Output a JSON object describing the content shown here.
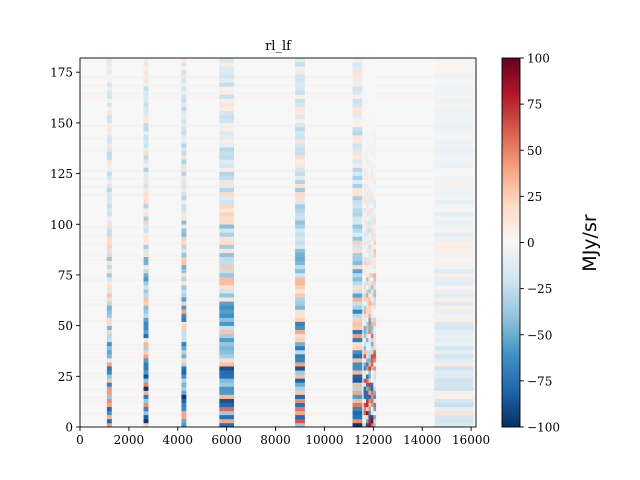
{
  "chart_data": {
    "type": "heatmap",
    "title": "rl_lf",
    "xlabel": "",
    "ylabel": "",
    "xlim": [
      0,
      16200
    ],
    "ylim": [
      0,
      182
    ],
    "xticks": [
      0,
      2000,
      4000,
      6000,
      8000,
      10000,
      12000,
      14000,
      16000
    ],
    "xtick_labels": [
      "0",
      "2000",
      "4000",
      "6000",
      "8000",
      "10000",
      "12000",
      "14000",
      "16000"
    ],
    "yticks": [
      0,
      25,
      50,
      75,
      100,
      125,
      150,
      175
    ],
    "ytick_labels": [
      "0",
      "25",
      "50",
      "75",
      "100",
      "125",
      "150",
      "175"
    ],
    "colormap": "RdBu_r",
    "colormap_stops": [
      "#053061",
      "#2166ac",
      "#4393c3",
      "#92c5de",
      "#d1e5f0",
      "#f7f7f7",
      "#fddbc7",
      "#f4a582",
      "#d6604d",
      "#b2182b",
      "#67001f"
    ],
    "colorbar": {
      "label": "MJy/sr",
      "range": [
        -100,
        100
      ],
      "ticks": [
        -100,
        -75,
        -50,
        -25,
        0,
        25,
        50,
        75,
        100
      ],
      "tick_labels": [
        "−100",
        "−75",
        "−50",
        "−25",
        "0",
        "25",
        "50",
        "75",
        "100"
      ]
    },
    "bands": [
      {
        "x_start": 1100,
        "x_end": 1300,
        "peak_value": -80
      },
      {
        "x_start": 2600,
        "x_end": 2800,
        "peak_value": -100
      },
      {
        "x_start": 4150,
        "x_end": 4350,
        "peak_value": -100
      },
      {
        "x_start": 5700,
        "x_end": 6300,
        "peak_value": -100
      },
      {
        "x_start": 8800,
        "x_end": 9200,
        "peak_value": -100
      },
      {
        "x_start": 11150,
        "x_end": 11550,
        "peak_value": -100
      },
      {
        "x_start": 11600,
        "x_end": 12100,
        "peak_value": 100
      },
      {
        "x_start": 14500,
        "x_end": 16100,
        "peak_value": -25
      }
    ]
  }
}
